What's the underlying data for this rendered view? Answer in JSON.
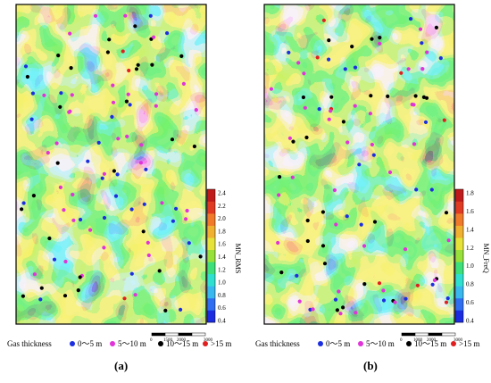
{
  "panels": [
    {
      "label": "(a)",
      "colorbar_title": "MN_RMS",
      "ticks": [
        "2.4",
        "2.2",
        "2.0",
        "1.8",
        "1.6",
        "1.4",
        "1.2",
        "1.0",
        "0.8",
        "0.6",
        "0.4"
      ],
      "scale_labels": [
        "0",
        "1500",
        "2000",
        "3000"
      ],
      "legend": {
        "title": "Gas thickness",
        "items": [
          {
            "label": "0～5 m",
            "color": "#1c2fe0"
          },
          {
            "label": "5～10 m",
            "color": "#e033d8"
          },
          {
            "label": "10～15 m",
            "color": "#000000"
          },
          {
            "label": ">15 m",
            "color": "#e02020"
          }
        ]
      }
    },
    {
      "label": "(b)",
      "colorbar_title": "MN_FreQ",
      "ticks": [
        "1.8",
        "1.6",
        "1.4",
        "1.2",
        "1.0",
        "0.8",
        "0.6",
        "0.4"
      ],
      "scale_labels": [
        "0",
        "1000",
        "2000",
        "3000"
      ],
      "legend": {
        "title": "Gas thickness",
        "items": [
          {
            "label": "0～5 m",
            "color": "#1c2fe0"
          },
          {
            "label": "5～10 m",
            "color": "#e033d8"
          },
          {
            "label": "10～15 m",
            "color": "#000000"
          },
          {
            "label": ">15 m",
            "color": "#e02020"
          }
        ]
      }
    }
  ],
  "palette": [
    "#1a2be0",
    "#2f6ef0",
    "#39b8f0",
    "#2fe0d0",
    "#3de07a",
    "#98e03a",
    "#e6e23a",
    "#f0b030",
    "#f07a2a",
    "#e03a22",
    "#c01a1a"
  ]
}
